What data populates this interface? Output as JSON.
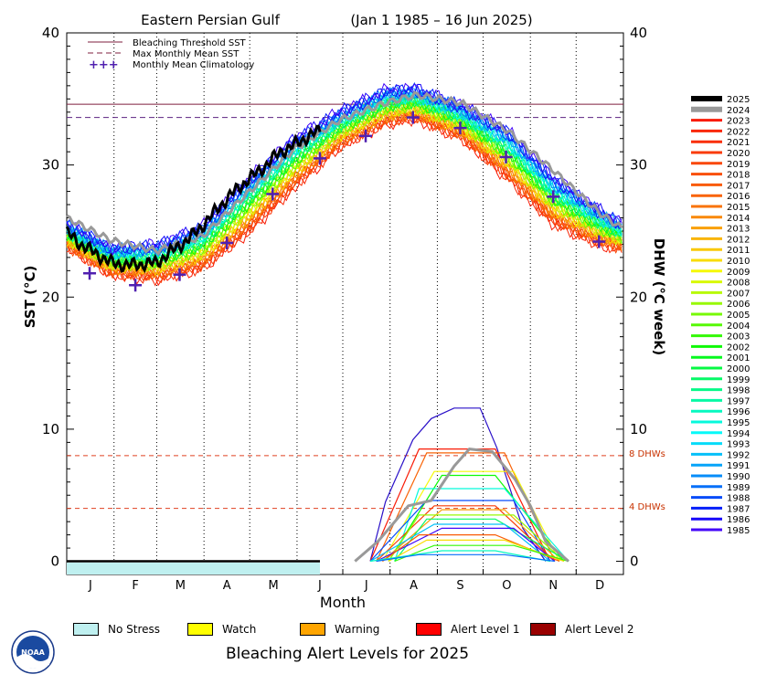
{
  "header": {
    "region": "Eastern Persian Gulf",
    "period": "(Jan 1 1985 – 16 Jun 2025)"
  },
  "axes": {
    "left_label": "SST (°C)",
    "right_label": "DHW (°C week)",
    "x_label": "Month",
    "left_ticks": [
      "0",
      "10",
      "20",
      "30",
      "40"
    ],
    "right_ticks": [
      "0",
      "10",
      "20",
      "30",
      "40"
    ],
    "months": [
      "J",
      "F",
      "M",
      "A",
      "M",
      "J",
      "J",
      "A",
      "S",
      "O",
      "N",
      "D"
    ]
  },
  "legend": {
    "threshold": "Bleaching Threshold SST",
    "mmm": "Max Monthly Mean SST",
    "climatology": "Monthly Mean Climatology"
  },
  "ref_labels": {
    "dhw8": "8 DHWs",
    "dhw4": "4 DHWs"
  },
  "years": [
    "2025",
    "2024",
    "2023",
    "2022",
    "2021",
    "2020",
    "2019",
    "2018",
    "2017",
    "2016",
    "2015",
    "2014",
    "2013",
    "2012",
    "2011",
    "2010",
    "2009",
    "2008",
    "2007",
    "2006",
    "2005",
    "2004",
    "2003",
    "2002",
    "2001",
    "2000",
    "1999",
    "1998",
    "1997",
    "1996",
    "1995",
    "1994",
    "1993",
    "1992",
    "1991",
    "1990",
    "1989",
    "1988",
    "1987",
    "1986",
    "1985"
  ],
  "alert_levels": [
    {
      "label": "No Stress",
      "color": "#bff0f0"
    },
    {
      "label": "Watch",
      "color": "#ffff00"
    },
    {
      "label": "Warning",
      "color": "#ffa500"
    },
    {
      "label": "Alert Level 1",
      "color": "#ff0000"
    },
    {
      "label": "Alert Level 2",
      "color": "#990000"
    }
  ],
  "footer": {
    "title": "Bleaching Alert Levels for 2025"
  },
  "logo": {
    "text": "NOAA"
  },
  "chart_data": {
    "type": "line",
    "title": "Eastern Persian Gulf",
    "subtitle": "(Jan 1 1985 – 16 Jun 2025)",
    "xlabel": "Month",
    "ylabel": "SST (°C)",
    "ylabel_right": "DHW (°C week)",
    "ylim": [
      -1,
      40
    ],
    "ylim_right": [
      -1,
      40
    ],
    "bleaching_threshold_sst": 34.6,
    "max_monthly_mean_sst": 33.6,
    "monthly_mean_climatology": {
      "months": [
        "Jan",
        "Feb",
        "Mar",
        "Apr",
        "May",
        "Jun",
        "Jul",
        "Aug",
        "Sep",
        "Oct",
        "Nov",
        "Dec"
      ],
      "values": [
        21.8,
        20.9,
        21.7,
        24.1,
        27.8,
        30.5,
        32.2,
        33.6,
        32.8,
        30.6,
        27.6,
        24.2
      ]
    },
    "dhw_reference_lines": [
      8,
      4
    ],
    "sst_2025": {
      "day_of_year": [
        1,
        10,
        20,
        30,
        40,
        50,
        60,
        70,
        80,
        90,
        100,
        110,
        120,
        130,
        140,
        150,
        160,
        167
      ],
      "values": [
        24.9,
        24.0,
        23.3,
        22.6,
        22.4,
        22.5,
        22.6,
        23.5,
        24.3,
        25.4,
        26.7,
        27.9,
        28.9,
        29.8,
        30.9,
        31.5,
        32.2,
        32.6
      ]
    },
    "sst_2024": {
      "day_of_year": [
        1,
        30,
        60,
        90,
        120,
        150,
        180,
        210,
        230,
        260,
        290,
        320,
        350,
        365
      ],
      "values": [
        26.0,
        24.3,
        23.5,
        24.6,
        27.9,
        31.2,
        33.4,
        34.7,
        35.3,
        34.7,
        32.6,
        29.6,
        26.4,
        25.2
      ]
    },
    "sst_envelope": {
      "day_of_year": [
        1,
        30,
        60,
        90,
        120,
        150,
        180,
        210,
        230,
        260,
        290,
        320,
        350,
        365
      ],
      "high": [
        26.0,
        24.2,
        24.5,
        26.0,
        29.8,
        32.8,
        34.6,
        36.2,
        36.3,
        35.0,
        33.4,
        29.8,
        27.2,
        26.0
      ],
      "low": [
        23.4,
        21.3,
        20.8,
        21.5,
        24.0,
        27.5,
        30.8,
        32.6,
        33.0,
        31.5,
        28.2,
        24.8,
        23.4,
        23.2
      ]
    },
    "dhw_2024": {
      "day_of_year": [
        190,
        205,
        225,
        240,
        255,
        265,
        280,
        295,
        305,
        315,
        330
      ],
      "values": [
        0,
        1.5,
        4.2,
        4.6,
        7.2,
        8.5,
        8.3,
        6.2,
        4.2,
        1.5,
        0
      ]
    },
    "dhw_max_year": {
      "day_of_year": [
        200,
        210,
        228,
        240,
        255,
        262,
        272,
        283,
        300,
        315
      ],
      "values": [
        0,
        4.5,
        9.2,
        10.8,
        11.6,
        11.6,
        11.6,
        8.6,
        2.5,
        0
      ]
    },
    "dhw_2025": {
      "day_of_year": [
        1,
        167
      ],
      "values": [
        0,
        0
      ]
    },
    "alert_levels_2025": {
      "day_of_year_range": [
        1,
        167
      ],
      "level": "No Stress"
    }
  }
}
